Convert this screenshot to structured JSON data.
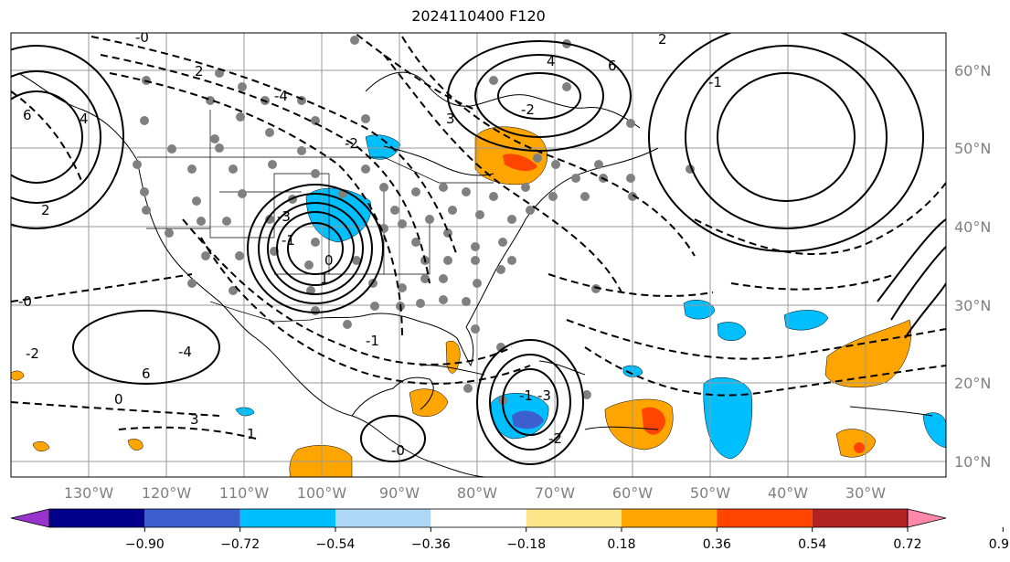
{
  "title": "2024110400 F120",
  "longitude_labels": [
    "130°W",
    "120°W",
    "110°W",
    "100°W",
    "90°W",
    "80°W",
    "70°W",
    "60°W",
    "50°W",
    "40°W",
    "30°W"
  ],
  "latitude_labels": [
    "60°N",
    "50°N",
    "40°N",
    "30°N",
    "20°N",
    "10°N"
  ],
  "colorbar": {
    "tick_labels": [
      "−0.90",
      "−0.72",
      "−0.54",
      "−0.36",
      "−0.18",
      "0.18",
      "0.36",
      "0.54",
      "0.72",
      "0.90"
    ],
    "colors": [
      "#9933cc",
      "#00008b",
      "#3b5fcd",
      "#00bfff",
      "#add8f5",
      "#ffffff",
      "#fde68a",
      "#ffa500",
      "#ff4500",
      "#b22222",
      "#ff88aa"
    ]
  },
  "contour_labels": [
    "-0",
    "2",
    "-4",
    "6",
    "4",
    "-2",
    "-3",
    "2",
    "-1",
    "0",
    "1",
    "-0",
    "-1",
    "-2",
    "-4",
    "6",
    "0",
    "3",
    "1",
    "-0",
    "-1",
    "-3",
    "-2",
    "3",
    "-2",
    "4",
    "6",
    "2",
    "-1"
  ],
  "colors": {
    "grid": "#999999",
    "coast": "#000000",
    "stations": "#808080",
    "negative_fill": "#00bfff",
    "positive_fill": "#ffa500"
  }
}
